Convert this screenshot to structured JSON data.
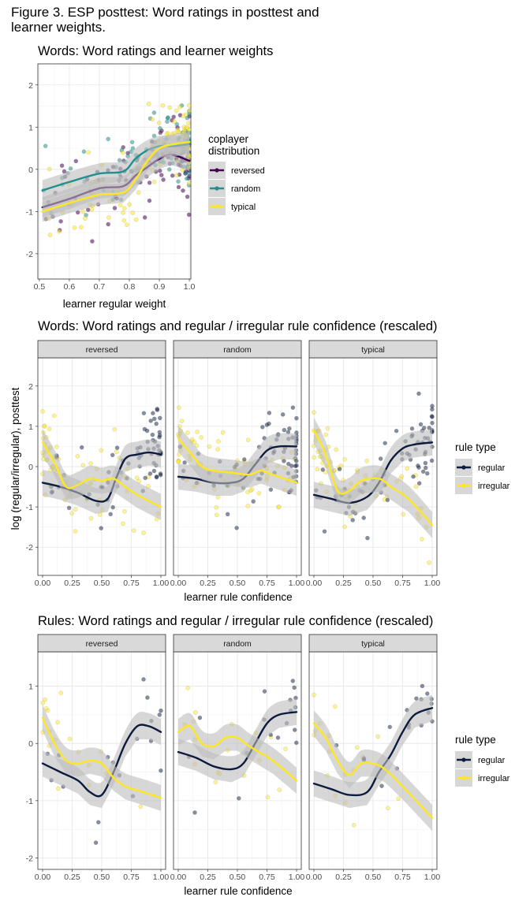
{
  "figure_title": "Figure 3. ESP posttest: Word ratings in posttest and learner weights.",
  "colors": {
    "reversed": "#440154",
    "random": "#21908C",
    "typical": "#FDE725",
    "regular": "#0D1B3E",
    "irregular": "#FDE725",
    "band": "#BDBDBD",
    "panel_strip": "#D9D9D9"
  },
  "chart_data": [
    {
      "type": "scatter",
      "title": "Words: Word ratings and learner weights",
      "xlabel": "learner regular weight",
      "ylabel": "",
      "xlim": [
        0.5,
        1.0
      ],
      "ylim": [
        -2.6,
        2.5
      ],
      "xticks": [
        "0.5",
        "0.6",
        "0.7",
        "0.8",
        "0.9",
        "1.0"
      ],
      "yticks": [
        "-2",
        "-1",
        "0",
        "1",
        "2"
      ],
      "grid": true,
      "legend": {
        "title": "coplayer distribution",
        "entries": [
          "reversed",
          "random",
          "typical"
        ],
        "position": "right"
      },
      "series": [
        {
          "name": "reversed",
          "smooth": [
            [
              0.51,
              -0.9
            ],
            [
              0.6,
              -0.7
            ],
            [
              0.7,
              -0.45
            ],
            [
              0.78,
              -0.4
            ],
            [
              0.82,
              -0.15
            ],
            [
              0.86,
              0.05
            ],
            [
              0.9,
              0.25
            ],
            [
              0.94,
              0.35
            ],
            [
              1.0,
              0.2
            ]
          ]
        },
        {
          "name": "random",
          "smooth": [
            [
              0.51,
              -0.5
            ],
            [
              0.6,
              -0.3
            ],
            [
              0.7,
              -0.1
            ],
            [
              0.78,
              -0.05
            ],
            [
              0.82,
              0.25
            ],
            [
              0.86,
              0.45
            ],
            [
              0.9,
              0.55
            ],
            [
              0.95,
              0.55
            ],
            [
              1.0,
              0.6
            ]
          ]
        },
        {
          "name": "typical",
          "smooth": [
            [
              0.51,
              -1.0
            ],
            [
              0.6,
              -0.8
            ],
            [
              0.7,
              -0.6
            ],
            [
              0.78,
              -0.55
            ],
            [
              0.82,
              -0.25
            ],
            [
              0.86,
              0.2
            ],
            [
              0.9,
              0.5
            ],
            [
              0.95,
              0.6
            ],
            [
              1.0,
              0.65
            ]
          ]
        }
      ]
    },
    {
      "type": "scatter",
      "title": "Words: Word ratings and regular / irregular rule confidence (rescaled)",
      "xlabel": "learner rule confidence",
      "ylabel": "log (regular/irregular), posttest",
      "xlim": [
        0,
        1
      ],
      "ylim": [
        -2.7,
        2.7
      ],
      "xticks": [
        "0.00",
        "0.25",
        "0.50",
        "0.75",
        "1.00"
      ],
      "yticks": [
        "-2",
        "-1",
        "0",
        "1",
        "2"
      ],
      "grid": true,
      "facets": [
        "reversed",
        "random",
        "typical"
      ],
      "legend": {
        "title": "rule type",
        "entries": [
          "regular",
          "irregular"
        ],
        "position": "right"
      },
      "panels": [
        {
          "facet": "reversed",
          "regular": [
            [
              0,
              -0.4
            ],
            [
              0.15,
              -0.5
            ],
            [
              0.3,
              -0.65
            ],
            [
              0.45,
              -0.85
            ],
            [
              0.55,
              -0.8
            ],
            [
              0.62,
              -0.3
            ],
            [
              0.7,
              0.2
            ],
            [
              0.8,
              0.3
            ],
            [
              0.9,
              0.35
            ],
            [
              1.0,
              0.3
            ]
          ],
          "irregular": [
            [
              0,
              0.6
            ],
            [
              0.1,
              0.1
            ],
            [
              0.2,
              -0.5
            ],
            [
              0.3,
              -0.45
            ],
            [
              0.4,
              -0.3
            ],
            [
              0.5,
              -0.35
            ],
            [
              0.6,
              -0.3
            ],
            [
              0.7,
              -0.5
            ],
            [
              0.8,
              -0.7
            ],
            [
              1.0,
              -1.0
            ]
          ]
        },
        {
          "facet": "random",
          "regular": [
            [
              0,
              -0.25
            ],
            [
              0.15,
              -0.3
            ],
            [
              0.3,
              -0.4
            ],
            [
              0.45,
              -0.4
            ],
            [
              0.55,
              -0.3
            ],
            [
              0.65,
              0.05
            ],
            [
              0.75,
              0.4
            ],
            [
              0.85,
              0.5
            ],
            [
              1.0,
              0.5
            ]
          ],
          "irregular": [
            [
              0,
              0.7
            ],
            [
              0.1,
              0.35
            ],
            [
              0.2,
              0.0
            ],
            [
              0.3,
              -0.1
            ],
            [
              0.45,
              -0.15
            ],
            [
              0.6,
              -0.2
            ],
            [
              0.7,
              -0.1
            ],
            [
              0.8,
              -0.2
            ],
            [
              1.0,
              -0.4
            ]
          ]
        },
        {
          "facet": "typical",
          "regular": [
            [
              0,
              -0.7
            ],
            [
              0.15,
              -0.8
            ],
            [
              0.3,
              -0.9
            ],
            [
              0.45,
              -0.75
            ],
            [
              0.55,
              -0.4
            ],
            [
              0.65,
              0.15
            ],
            [
              0.75,
              0.45
            ],
            [
              0.85,
              0.55
            ],
            [
              1.0,
              0.6
            ]
          ],
          "irregular": [
            [
              0,
              0.9
            ],
            [
              0.1,
              0.3
            ],
            [
              0.2,
              -0.6
            ],
            [
              0.3,
              -0.6
            ],
            [
              0.4,
              -0.35
            ],
            [
              0.55,
              -0.3
            ],
            [
              0.65,
              -0.5
            ],
            [
              0.8,
              -0.8
            ],
            [
              1.0,
              -1.45
            ]
          ]
        }
      ]
    },
    {
      "type": "scatter",
      "title": "Rules: Word ratings and regular / irregular rule confidence (rescaled)",
      "xlabel": "learner rule confidence",
      "ylabel": "",
      "xlim": [
        0,
        1
      ],
      "ylim": [
        -2.2,
        1.6
      ],
      "xticks": [
        "0.00",
        "0.25",
        "0.50",
        "0.75",
        "1.00"
      ],
      "yticks": [
        "-2",
        "-1",
        "0",
        "1"
      ],
      "grid": true,
      "facets": [
        "reversed",
        "random",
        "typical"
      ],
      "legend": {
        "title": "rule type",
        "entries": [
          "regular",
          "irregular"
        ],
        "position": "right"
      },
      "panels": [
        {
          "facet": "reversed",
          "regular": [
            [
              0,
              -0.35
            ],
            [
              0.15,
              -0.5
            ],
            [
              0.3,
              -0.65
            ],
            [
              0.4,
              -0.85
            ],
            [
              0.5,
              -0.9
            ],
            [
              0.6,
              -0.5
            ],
            [
              0.7,
              0.0
            ],
            [
              0.8,
              0.3
            ],
            [
              0.9,
              0.3
            ],
            [
              1.0,
              0.2
            ]
          ],
          "irregular": [
            [
              0,
              0.45
            ],
            [
              0.1,
              0.0
            ],
            [
              0.2,
              -0.3
            ],
            [
              0.3,
              -0.35
            ],
            [
              0.4,
              -0.3
            ],
            [
              0.5,
              -0.35
            ],
            [
              0.6,
              -0.6
            ],
            [
              0.7,
              -0.75
            ],
            [
              0.85,
              -0.85
            ],
            [
              1.0,
              -0.95
            ]
          ]
        },
        {
          "facet": "random",
          "regular": [
            [
              0,
              -0.15
            ],
            [
              0.15,
              -0.25
            ],
            [
              0.3,
              -0.4
            ],
            [
              0.45,
              -0.45
            ],
            [
              0.55,
              -0.35
            ],
            [
              0.65,
              0.0
            ],
            [
              0.75,
              0.35
            ],
            [
              0.85,
              0.5
            ],
            [
              1.0,
              0.55
            ]
          ],
          "irregular": [
            [
              0,
              0.2
            ],
            [
              0.1,
              0.3
            ],
            [
              0.2,
              0.0
            ],
            [
              0.3,
              -0.05
            ],
            [
              0.4,
              0.1
            ],
            [
              0.5,
              0.1
            ],
            [
              0.6,
              -0.05
            ],
            [
              0.8,
              -0.3
            ],
            [
              1.0,
              -0.65
            ]
          ]
        },
        {
          "facet": "typical",
          "regular": [
            [
              0,
              -0.7
            ],
            [
              0.15,
              -0.8
            ],
            [
              0.3,
              -0.9
            ],
            [
              0.45,
              -0.85
            ],
            [
              0.55,
              -0.5
            ],
            [
              0.65,
              -0.2
            ],
            [
              0.75,
              0.2
            ],
            [
              0.85,
              0.5
            ],
            [
              1.0,
              0.62
            ]
          ],
          "irregular": [
            [
              0,
              0.35
            ],
            [
              0.1,
              0.1
            ],
            [
              0.2,
              -0.3
            ],
            [
              0.3,
              -0.55
            ],
            [
              0.4,
              -0.35
            ],
            [
              0.5,
              -0.35
            ],
            [
              0.6,
              -0.45
            ],
            [
              0.75,
              -0.75
            ],
            [
              1.0,
              -1.3
            ]
          ]
        }
      ]
    }
  ]
}
